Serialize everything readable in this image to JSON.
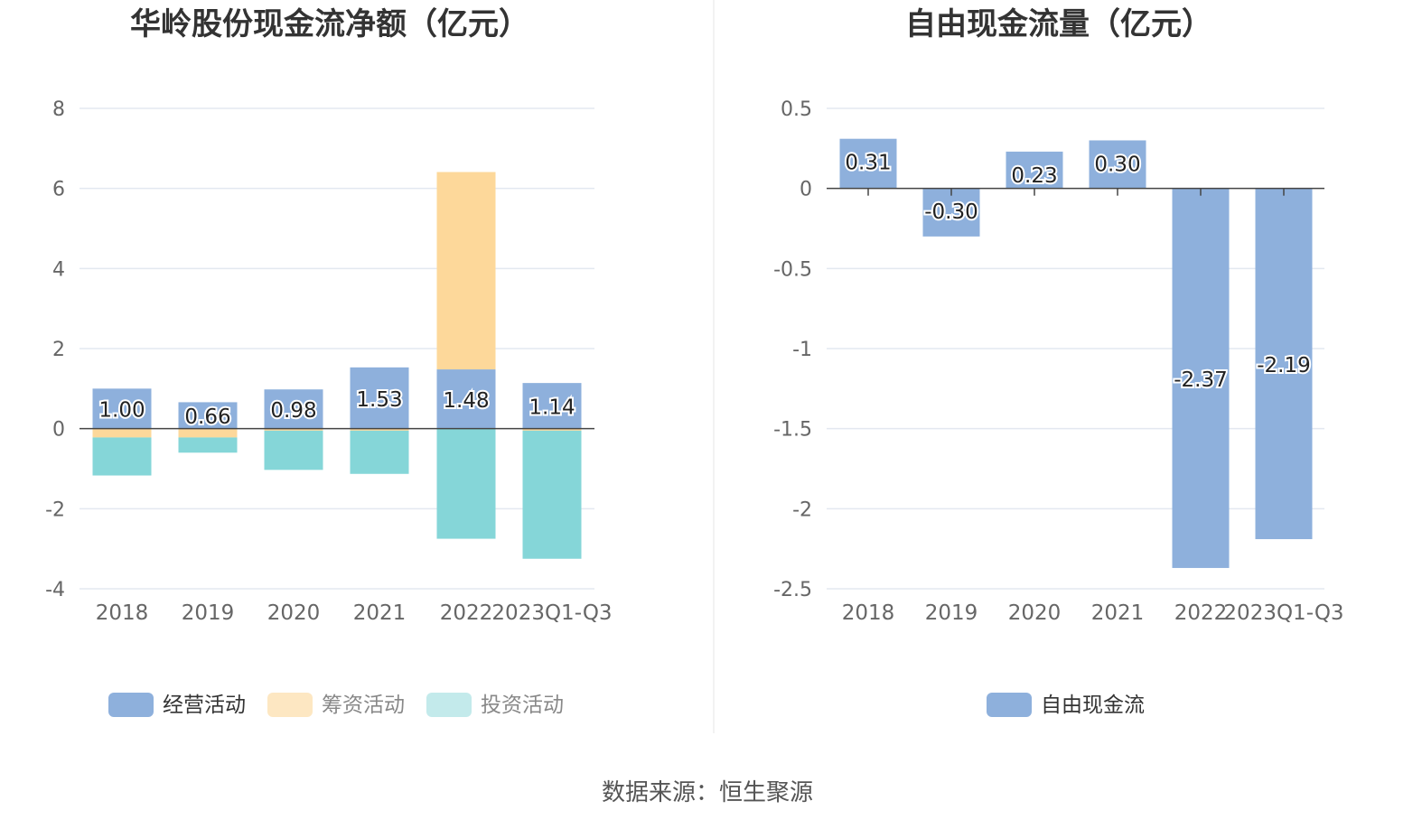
{
  "source": "数据来源：恒生聚源",
  "chart_data": [
    {
      "type": "bar",
      "stacked": true,
      "title": "华岭股份现金流净额（亿元）",
      "categories": [
        "2018",
        "2019",
        "2020",
        "2021",
        "2022",
        "2023Q1-Q3"
      ],
      "ylim": [
        -4,
        8
      ],
      "yticks": [
        "8",
        "6",
        "4",
        "2",
        "0",
        "-2",
        "-4"
      ],
      "ytick_values": [
        8,
        6,
        4,
        2,
        0,
        -2,
        -4
      ],
      "grid": true,
      "legend_position": "bottom",
      "series": [
        {
          "name": "经营活动",
          "color": "#8eb0dc",
          "values": [
            1.0,
            0.66,
            0.98,
            1.53,
            1.48,
            1.14
          ],
          "labels": [
            "1.00",
            "0.66",
            "0.98",
            "1.53",
            "1.48",
            "1.14"
          ]
        },
        {
          "name": "筹资活动",
          "color": "#fdd89a",
          "values": [
            -0.22,
            -0.22,
            -0.05,
            -0.05,
            4.93,
            -0.05
          ]
        },
        {
          "name": "投资活动",
          "color": "#85d6d8",
          "values": [
            -0.95,
            -0.38,
            -0.98,
            -1.08,
            -2.75,
            -3.2
          ]
        }
      ]
    },
    {
      "type": "bar",
      "title": "自由现金流量（亿元）",
      "categories": [
        "2018",
        "2019",
        "2020",
        "2021",
        "2022",
        "2023Q1-Q3"
      ],
      "ylim": [
        -2.5,
        0.5
      ],
      "yticks": [
        "0.5",
        "0",
        "-0.5",
        "-1",
        "-1.5",
        "-2",
        "-2.5"
      ],
      "ytick_values": [
        0.5,
        0,
        -0.5,
        -1,
        -1.5,
        -2,
        -2.5
      ],
      "grid": true,
      "legend_position": "bottom",
      "series": [
        {
          "name": "自由现金流",
          "color": "#8eb0dc",
          "values": [
            0.31,
            -0.3,
            0.23,
            0.3,
            -2.37,
            -2.19
          ],
          "labels": [
            "0.31",
            "-0.30",
            "0.23",
            "0.30",
            "-2.37",
            "-2.19"
          ]
        }
      ]
    }
  ]
}
